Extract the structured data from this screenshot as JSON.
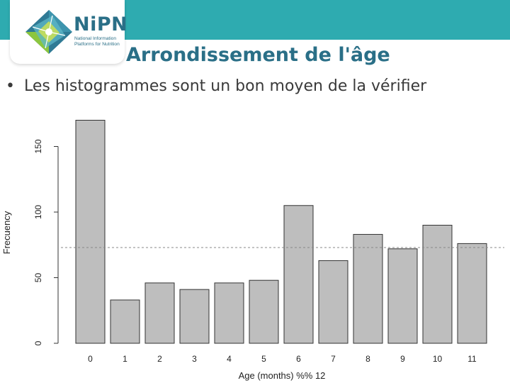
{
  "header": {
    "logo": {
      "name": "NiPN",
      "subtitle_lines": [
        "National Information",
        "Platforms for Nutrition"
      ]
    },
    "colors": {
      "band": "#2eabb0",
      "title": "#2a6f87"
    }
  },
  "slide": {
    "title": "Arrondissement de l'âge",
    "bullet_symbol": "•",
    "bullet": "Les histogrammes sont un bon moyen de la vérifier"
  },
  "chart_data": {
    "type": "bar",
    "categories": [
      "0",
      "1",
      "2",
      "3",
      "4",
      "5",
      "6",
      "7",
      "8",
      "9",
      "10",
      "11"
    ],
    "values": [
      170,
      33,
      46,
      41,
      46,
      48,
      105,
      63,
      83,
      72,
      90,
      76
    ],
    "xlabel": "Age (months) %% 12",
    "ylabel": "Frecuency",
    "yticks": [
      0,
      50,
      100,
      150
    ],
    "ylim": [
      0,
      170
    ],
    "reference_line": 73,
    "bar_color": "#bebebe",
    "grid": false
  }
}
